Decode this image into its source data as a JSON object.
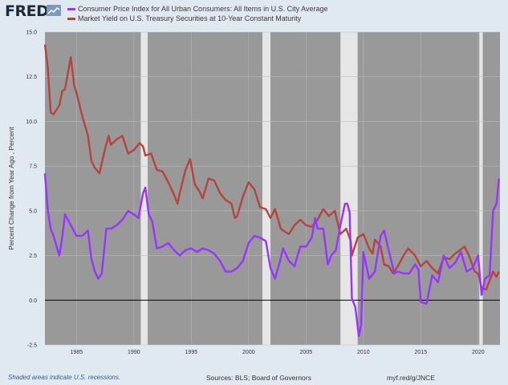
{
  "logo": {
    "text": "FRED"
  },
  "chart_data": {
    "type": "line",
    "ylabel": "Percent Change from Year Ago , Percent",
    "ylim": [
      -2.5,
      15
    ],
    "xlim": [
      1982.25,
      2021.9
    ],
    "yticks": [
      -2.5,
      0.0,
      2.5,
      5.0,
      7.5,
      10.0,
      12.5,
      15.0
    ],
    "ytick_labels": [
      "-2.5",
      "0.0",
      "2.5",
      "5.0",
      "7.5",
      "10.0",
      "12.5",
      "15.0"
    ],
    "xticks": [
      1985,
      1990,
      1995,
      2000,
      2005,
      2010,
      2015,
      2020
    ],
    "xtick_labels": [
      "1985",
      "1990",
      "1995",
      "2000",
      "2005",
      "2010",
      "2015",
      "2020"
    ],
    "grid": true,
    "zero_line": true,
    "recessions": [
      [
        1990.6,
        1991.2
      ],
      [
        2001.2,
        2001.9
      ],
      [
        2008.0,
        2009.5
      ],
      [
        2020.1,
        2020.4
      ]
    ],
    "series": [
      {
        "name": "Consumer Price Index for All Urban Consumers: All Items in U.S. City Average",
        "color": "#9933ff",
        "x": [
          1982.25,
          1982.5,
          1982.75,
          1983.0,
          1983.5,
          1983.75,
          1984.0,
          1984.5,
          1985.0,
          1985.5,
          1986.0,
          1986.3,
          1986.6,
          1986.9,
          1987.2,
          1987.6,
          1988.0,
          1988.5,
          1989.0,
          1989.5,
          1990.0,
          1990.4,
          1990.8,
          1991.0,
          1991.3,
          1991.6,
          1992.0,
          1992.5,
          1993.0,
          1993.5,
          1994.0,
          1994.5,
          1995.0,
          1995.5,
          1996.0,
          1996.5,
          1997.0,
          1997.5,
          1998.0,
          1998.5,
          1999.0,
          1999.5,
          2000.0,
          2000.5,
          2001.0,
          2001.5,
          2001.9,
          2002.3,
          2002.7,
          2003.0,
          2003.5,
          2004.0,
          2004.5,
          2005.0,
          2005.5,
          2005.8,
          2006.0,
          2006.5,
          2006.9,
          2007.2,
          2007.6,
          2008.0,
          2008.4,
          2008.6,
          2008.8,
          2009.0,
          2009.3,
          2009.6,
          2009.8,
          2010.0,
          2010.5,
          2011.0,
          2011.5,
          2011.8,
          2012.2,
          2012.7,
          2013.0,
          2013.5,
          2014.0,
          2014.5,
          2014.8,
          2015.0,
          2015.5,
          2016.0,
          2016.5,
          2017.0,
          2017.5,
          2018.0,
          2018.5,
          2019.0,
          2019.5,
          2020.0,
          2020.3,
          2020.6,
          2021.0,
          2021.3,
          2021.6,
          2021.8
        ],
        "values": [
          7.1,
          5.0,
          4.0,
          3.6,
          2.5,
          3.5,
          4.8,
          4.2,
          3.6,
          3.6,
          3.9,
          2.3,
          1.6,
          1.2,
          1.5,
          4.0,
          4.0,
          4.2,
          4.5,
          5.0,
          4.8,
          4.6,
          6.0,
          6.3,
          4.8,
          4.4,
          2.9,
          3.0,
          3.2,
          2.8,
          2.5,
          2.8,
          2.9,
          2.7,
          2.9,
          2.8,
          2.6,
          2.2,
          1.6,
          1.6,
          1.8,
          2.2,
          3.2,
          3.6,
          3.5,
          3.3,
          1.8,
          1.2,
          2.1,
          2.9,
          2.2,
          1.9,
          3.0,
          3.0,
          3.5,
          4.6,
          4.0,
          4.0,
          2.0,
          2.5,
          2.8,
          4.2,
          5.4,
          5.4,
          4.9,
          0.1,
          -0.4,
          -2.0,
          -1.4,
          2.7,
          1.2,
          1.6,
          3.6,
          3.9,
          2.8,
          1.5,
          1.6,
          1.5,
          1.5,
          2.0,
          1.7,
          -0.1,
          -0.2,
          1.4,
          1.0,
          2.5,
          1.8,
          2.1,
          2.7,
          1.6,
          1.8,
          2.5,
          0.3,
          1.2,
          1.4,
          5.0,
          5.4,
          6.8
        ]
      },
      {
        "name": "Market Yield on U.S. Treasury Securities at 10-Year Constant Maturity",
        "color": "#b5443d",
        "x": [
          1982.25,
          1982.5,
          1982.75,
          1983.0,
          1983.5,
          1983.75,
          1984.0,
          1984.5,
          1984.8,
          1985.0,
          1985.5,
          1986.0,
          1986.3,
          1986.6,
          1987.0,
          1987.5,
          1987.8,
          1988.0,
          1988.5,
          1989.0,
          1989.5,
          1990.0,
          1990.5,
          1990.8,
          1991.0,
          1991.5,
          1992.0,
          1992.5,
          1993.0,
          1993.5,
          1993.8,
          1994.0,
          1994.5,
          1994.9,
          1995.3,
          1995.7,
          1996.0,
          1996.5,
          1997.0,
          1997.5,
          1998.0,
          1998.5,
          1998.8,
          1999.0,
          1999.5,
          2000.0,
          2000.5,
          2001.0,
          2001.5,
          2001.9,
          2002.3,
          2002.8,
          2003.0,
          2003.5,
          2004.0,
          2004.5,
          2005.0,
          2005.5,
          2006.0,
          2006.5,
          2007.0,
          2007.5,
          2008.0,
          2008.5,
          2008.9,
          2009.0,
          2009.5,
          2010.0,
          2010.5,
          2010.8,
          2011.0,
          2011.5,
          2011.8,
          2012.2,
          2012.6,
          2013.0,
          2013.5,
          2013.9,
          2014.5,
          2015.0,
          2015.5,
          2016.0,
          2016.5,
          2017.0,
          2017.5,
          2018.0,
          2018.8,
          2019.2,
          2019.7,
          2020.0,
          2020.3,
          2020.7,
          2021.0,
          2021.3,
          2021.6,
          2021.8
        ],
        "values": [
          14.3,
          13.0,
          10.5,
          10.4,
          10.9,
          11.7,
          11.8,
          13.6,
          12.0,
          11.6,
          10.3,
          9.2,
          7.8,
          7.4,
          7.1,
          8.5,
          9.2,
          8.7,
          9.0,
          9.2,
          8.2,
          8.4,
          8.8,
          8.6,
          8.1,
          8.2,
          7.3,
          7.2,
          6.6,
          5.9,
          5.4,
          6.0,
          7.3,
          7.9,
          6.5,
          6.1,
          5.7,
          6.8,
          6.7,
          6.0,
          5.6,
          5.4,
          4.6,
          4.7,
          5.8,
          6.6,
          6.2,
          5.2,
          5.1,
          4.6,
          5.1,
          4.0,
          3.9,
          3.7,
          4.2,
          4.5,
          4.2,
          4.1,
          4.5,
          5.1,
          4.7,
          5.0,
          3.7,
          4.0,
          3.3,
          2.5,
          3.5,
          3.7,
          2.9,
          2.6,
          3.4,
          3.0,
          2.0,
          1.9,
          1.5,
          1.9,
          2.5,
          2.9,
          2.5,
          1.9,
          2.2,
          1.8,
          1.5,
          2.4,
          2.3,
          2.6,
          3.0,
          2.5,
          1.6,
          1.5,
          0.7,
          0.6,
          1.1,
          1.6,
          1.3,
          1.6
        ]
      }
    ]
  },
  "footer": {
    "note": "Shaded areas indicate U.S. recessions.",
    "sources": "Sources: BLS; Board of Governors",
    "link": "myf.red/g/JNCE"
  }
}
